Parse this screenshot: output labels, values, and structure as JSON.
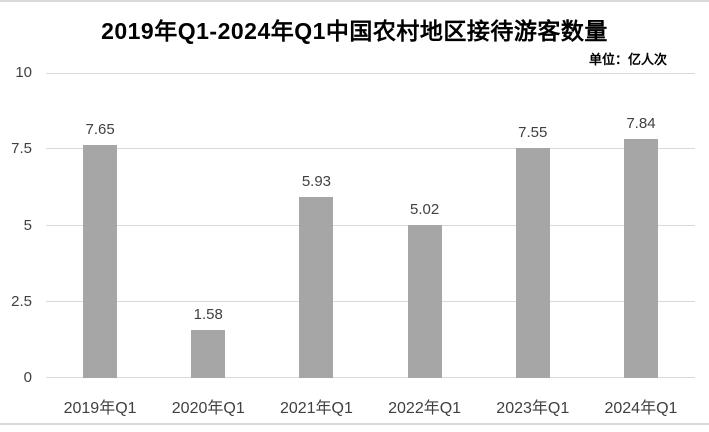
{
  "chart": {
    "title": "2019年Q1-2024年Q1中国农村地区接待游客数量",
    "unit_label": "单位：亿人次"
  },
  "chart_data": {
    "type": "bar",
    "title": "2019年Q1-2024年Q1中国农村地区接待游客数量",
    "subtitle_unit": "单位：亿人次",
    "categories": [
      "2019年Q1",
      "2020年Q1",
      "2021年Q1",
      "2022年Q1",
      "2023年Q1",
      "2024年Q1"
    ],
    "values": [
      7.65,
      1.58,
      5.93,
      5.02,
      7.55,
      7.84
    ],
    "value_labels": [
      "7.65",
      "1.58",
      "5.93",
      "5.02",
      "7.55",
      "7.84"
    ],
    "xlabel": "",
    "ylabel": "",
    "ylim": [
      0,
      10
    ],
    "yticks": [
      0,
      2.5,
      5,
      7.5,
      10
    ],
    "ytick_labels": [
      "0",
      "2.5",
      "5",
      "7.5",
      "10"
    ],
    "grid": true,
    "legend": "none",
    "colors": {
      "bar": "#a6a6a6",
      "gridline": "#d9d9d9",
      "data_label": "#404040",
      "axis_label": "#404040",
      "title": "#000000",
      "edge_rule": "#d9d9d9"
    }
  }
}
